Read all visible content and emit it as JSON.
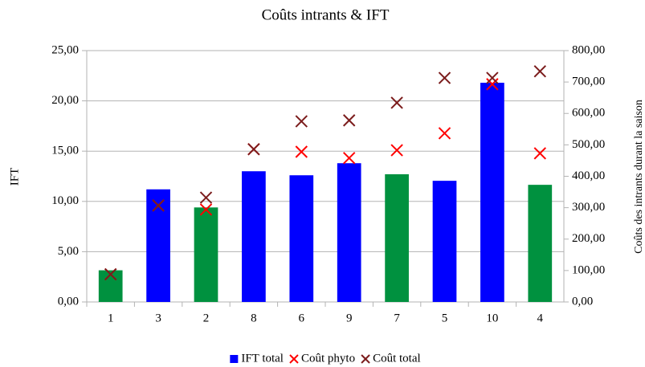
{
  "chart_data": {
    "type": "bar",
    "title": "Coûts intrants & IFT",
    "y_label": "IFT",
    "y2_label": "Coûts des intrants durant la saison",
    "categories": [
      "1",
      "3",
      "2",
      "8",
      "6",
      "9",
      "7",
      "5",
      "10",
      "4"
    ],
    "series": [
      {
        "name": "IFT total",
        "type": "bar",
        "color": "#0000ff",
        "colors": [
          "#00913f",
          "#0000ff",
          "#00913f",
          "#0000ff",
          "#0000ff",
          "#0000ff",
          "#00913f",
          "#0000ff",
          "#0000ff",
          "#00913f"
        ],
        "values": [
          3.15,
          11.2,
          9.4,
          13.0,
          12.6,
          13.8,
          12.7,
          12.05,
          21.8,
          11.65
        ]
      },
      {
        "name": "Coût phyto",
        "type": "scatter",
        "marker": "x",
        "axis": "y2",
        "color": "#ff0000",
        "values": [
          88,
          307,
          294,
          486,
          478,
          458,
          483,
          537,
          693,
          473
        ]
      },
      {
        "name": "Coût total",
        "type": "scatter",
        "marker": "x",
        "axis": "y2",
        "color": "#7b1c1c",
        "values": [
          88,
          307,
          332,
          486,
          575,
          578,
          634,
          713,
          713,
          734
        ]
      }
    ],
    "ylim": [
      0,
      25
    ],
    "yticks": [
      {
        "value": 0,
        "label": "0,00"
      },
      {
        "value": 5,
        "label": "5,00"
      },
      {
        "value": 10,
        "label": "10,00"
      },
      {
        "value": 15,
        "label": "15,00"
      },
      {
        "value": 20,
        "label": "20,00"
      },
      {
        "value": 25,
        "label": "25,00"
      }
    ],
    "y2lim": [
      0,
      800
    ],
    "y2ticks": [
      {
        "value": 0,
        "label": "0,00"
      },
      {
        "value": 100,
        "label": "100,00"
      },
      {
        "value": 200,
        "label": "200,00"
      },
      {
        "value": 300,
        "label": "300,00"
      },
      {
        "value": 400,
        "label": "400,00"
      },
      {
        "value": 500,
        "label": "500,00"
      },
      {
        "value": 600,
        "label": "600,00"
      },
      {
        "value": 700,
        "label": "700,00"
      },
      {
        "value": 800,
        "label": "800,00"
      }
    ],
    "grid": true,
    "legend": "bottom"
  }
}
